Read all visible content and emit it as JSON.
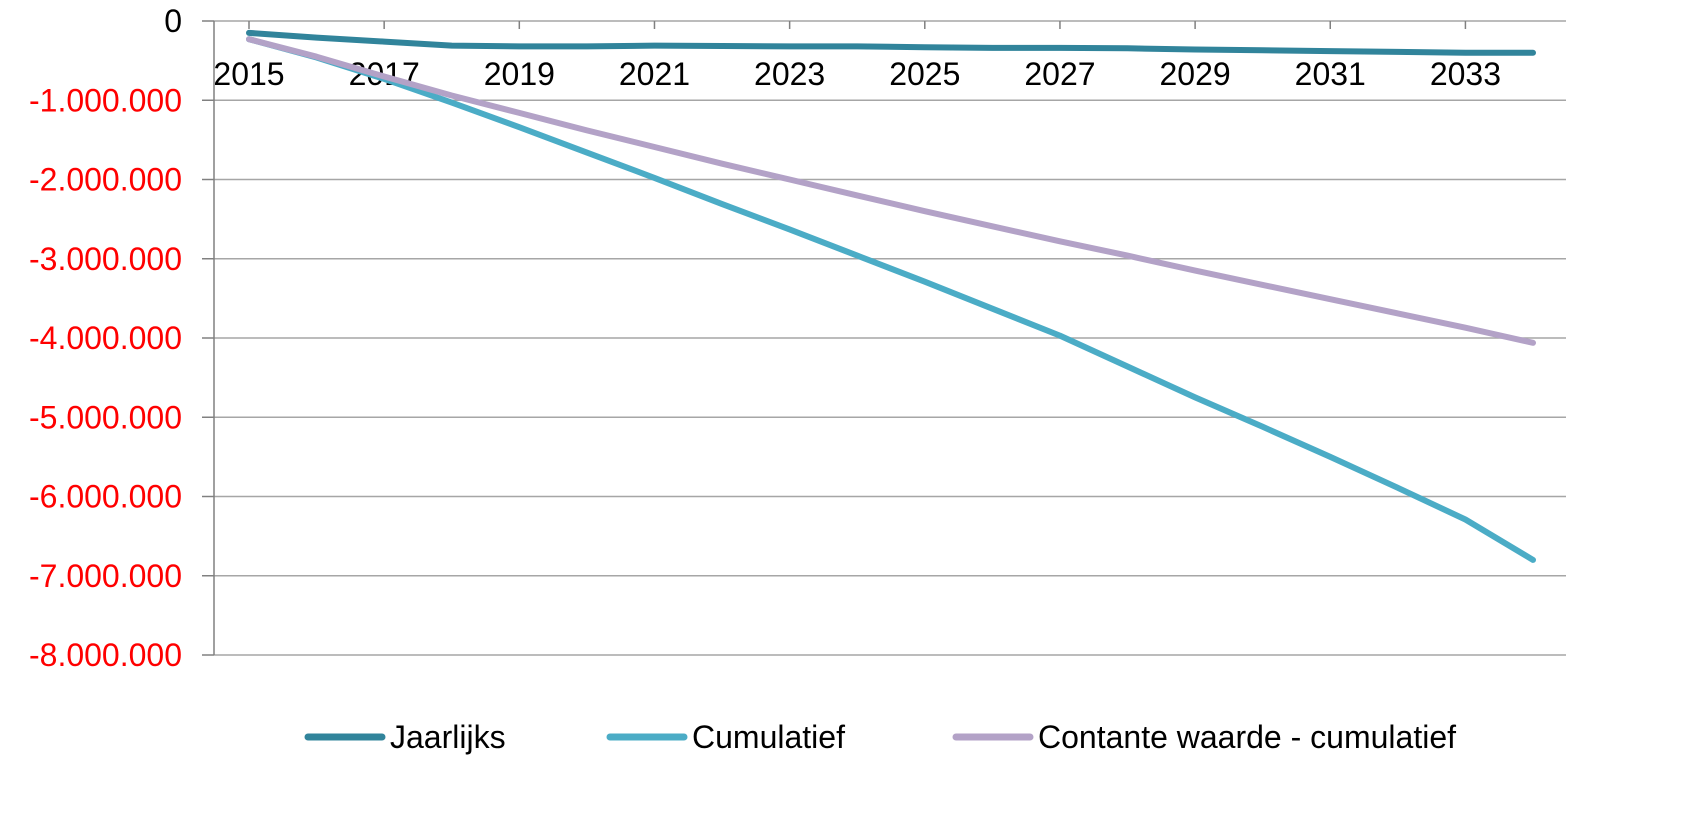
{
  "chart_data": {
    "type": "line",
    "x": [
      2015,
      2016,
      2017,
      2018,
      2019,
      2020,
      2021,
      2022,
      2023,
      2024,
      2025,
      2026,
      2027,
      2028,
      2029,
      2030,
      2031,
      2032,
      2033,
      2034
    ],
    "x_tick_labels": [
      "2015",
      "2017",
      "2019",
      "2021",
      "2023",
      "2025",
      "2027",
      "2029",
      "2031",
      "2033"
    ],
    "y_tick_labels": [
      "0",
      "-1.000.000",
      "-2.000.000",
      "-3.000.000",
      "-4.000.000",
      "-5.000.000",
      "-6.000.000",
      "-7.000.000",
      "-8.000.000"
    ],
    "y_ticks": [
      0,
      -1000000,
      -2000000,
      -3000000,
      -4000000,
      -5000000,
      -6000000,
      -7000000,
      -8000000
    ],
    "ylim": [
      -8000000,
      0
    ],
    "grid": true,
    "legend_position": "bottom",
    "series": [
      {
        "name": "Jaarlijks",
        "color": "#31849B",
        "values": [
          -150000,
          -210000,
          -260000,
          -310000,
          -320000,
          -320000,
          -310000,
          -315000,
          -320000,
          -320000,
          -330000,
          -340000,
          -340000,
          -345000,
          -360000,
          -370000,
          -380000,
          -390000,
          -400000,
          -400000
        ]
      },
      {
        "name": "Cumulatief",
        "color": "#4BACC6",
        "values": [
          -230000,
          -460000,
          -730000,
          -1030000,
          -1340000,
          -1660000,
          -1980000,
          -2310000,
          -2630000,
          -2960000,
          -3290000,
          -3630000,
          -3970000,
          -4360000,
          -4750000,
          -5120000,
          -5500000,
          -5890000,
          -6290000,
          -6800000
        ]
      },
      {
        "name": "Contante waarde - cumulatief",
        "color": "#B3A2C7",
        "values": [
          -230000,
          -450000,
          -700000,
          -940000,
          -1160000,
          -1380000,
          -1590000,
          -1800000,
          -2000000,
          -2200000,
          -2400000,
          -2590000,
          -2780000,
          -2960000,
          -3150000,
          -3330000,
          -3510000,
          -3690000,
          -3870000,
          -4060000
        ]
      }
    ]
  },
  "styles": {
    "y_tick_color": "#FF0000",
    "zero_tick_color": "#000000",
    "grid_color": "#A6A6A6",
    "axis_color": "#808080"
  }
}
